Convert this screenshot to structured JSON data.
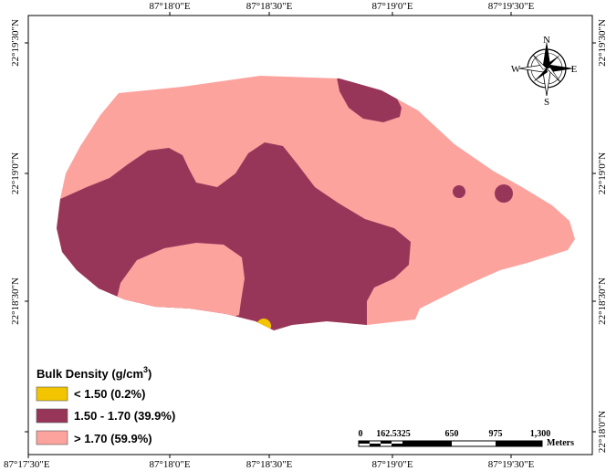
{
  "map": {
    "x_ticks": [
      "87°17'30\"E",
      "87°18'0\"E",
      "87°18'30\"E",
      "87°19'0\"E",
      "87°19'30\"E"
    ],
    "y_ticks_left": [
      "22°19'30\"N",
      "22°19'0\"N",
      "22°18'30\"N"
    ],
    "y_ticks_right": [
      "22°19'30\"N",
      "22°19'0\"N",
      "22°18'30\"N",
      "22°18'0\"N"
    ]
  },
  "legend": {
    "title_main": "Bulk Density (g/cm",
    "title_sup": "3",
    "title_close": ")",
    "items": [
      {
        "label": "< 1.50 (0.2%)",
        "color": "#f2c500"
      },
      {
        "label": "1.50 - 1.70 (39.9%)",
        "color": "#98365a"
      },
      {
        "label": "> 1.70 (59.9%)",
        "color": "#fca39e"
      }
    ]
  },
  "scale_bar": {
    "labels": [
      "0",
      "162.5325",
      "650",
      "975",
      "1,300"
    ],
    "unit": "Meters"
  },
  "compass": {
    "n": "N",
    "s": "S",
    "e": "E",
    "w": "W"
  },
  "colors": {
    "frame": "#000000",
    "background": "#ffffff"
  }
}
